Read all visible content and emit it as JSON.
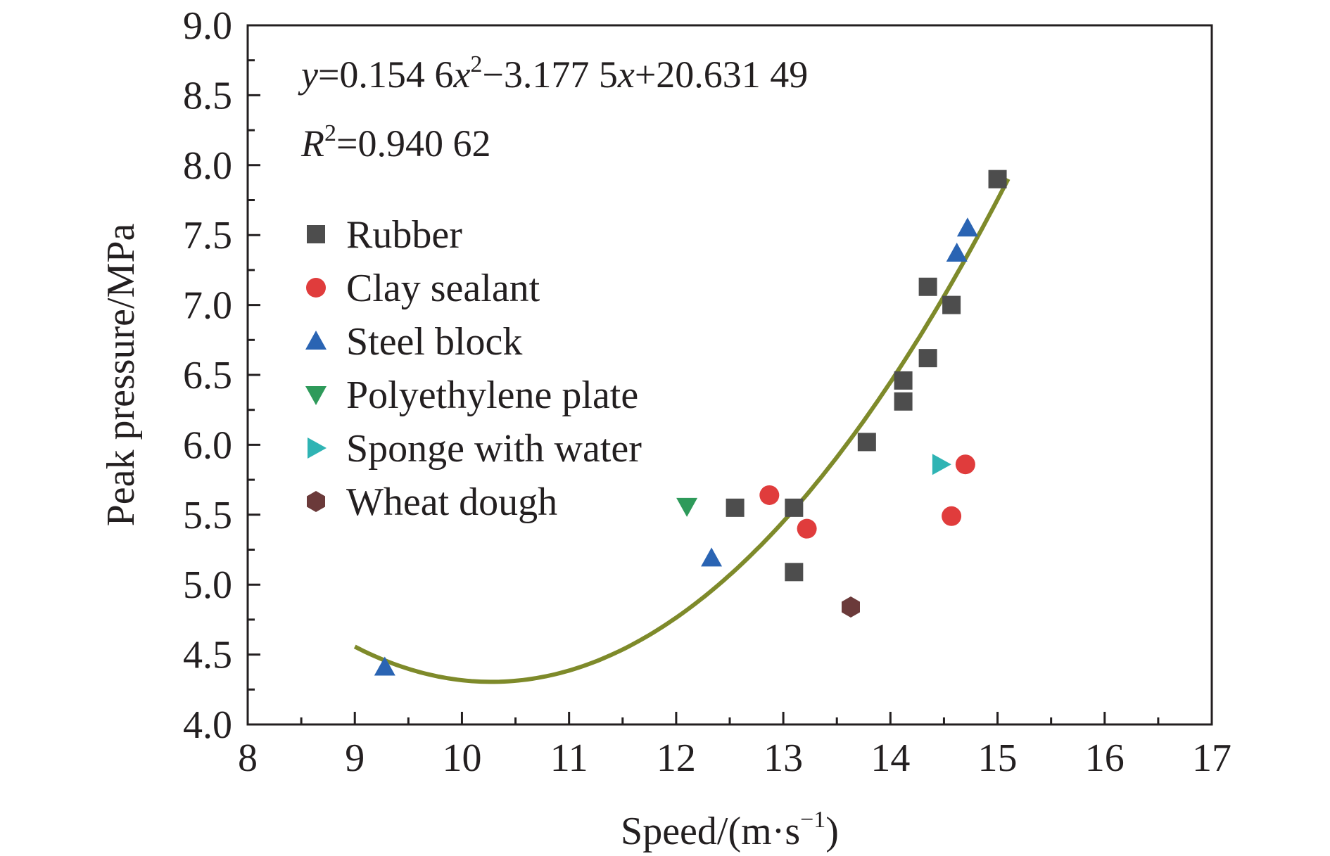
{
  "chart_data": {
    "type": "scatter",
    "xlabel": "Speed/(m·s",
    "xlabel_sup": "−1",
    "xlabel_end": ")",
    "ylabel": "Peak pressure/MPa",
    "xlim": [
      8,
      17
    ],
    "ylim": [
      4.0,
      9.0
    ],
    "x_ticks": [
      "8",
      "9",
      "10",
      "11",
      "12",
      "13",
      "14",
      "15",
      "16",
      "17"
    ],
    "y_ticks": [
      "4.0",
      "4.5",
      "5.0",
      "5.5",
      "6.0",
      "6.5",
      "7.0",
      "7.5",
      "8.0",
      "8.5",
      "9.0"
    ],
    "grid": false,
    "legend_position": "upper-left",
    "annotation": {
      "eq_y": "y",
      "eq_a": "=0.154 6",
      "eq_x1": "x",
      "eq_sup": "2",
      "eq_b": "−3.177 5",
      "eq_x2": "x",
      "eq_c": "+20.631 49",
      "r_R": "R",
      "r_sup": "2",
      "r_val": "=0.940 62"
    },
    "fit": {
      "a": 0.1546,
      "b": -3.1775,
      "c": 20.63149,
      "x_range": [
        9.0,
        15.1
      ],
      "color": "#7e8a2a"
    },
    "series": [
      {
        "name": "Rubber",
        "marker": "square",
        "color": "#4d4d4d",
        "points": [
          [
            12.55,
            5.55
          ],
          [
            13.1,
            5.55
          ],
          [
            13.1,
            5.09
          ],
          [
            13.78,
            6.02
          ],
          [
            14.12,
            6.46
          ],
          [
            14.12,
            6.31
          ],
          [
            14.35,
            7.13
          ],
          [
            14.35,
            6.62
          ],
          [
            14.57,
            7.0
          ],
          [
            15.0,
            7.9
          ]
        ]
      },
      {
        "name": "Clay sealant",
        "marker": "circle",
        "color": "#e03c3c",
        "points": [
          [
            12.87,
            5.64
          ],
          [
            13.22,
            5.4
          ],
          [
            14.57,
            5.49
          ],
          [
            14.7,
            5.86
          ]
        ]
      },
      {
        "name": "Steel block",
        "marker": "triangle-up",
        "color": "#2a64b3",
        "points": [
          [
            9.28,
            4.41
          ],
          [
            12.33,
            5.19
          ],
          [
            14.62,
            7.37
          ],
          [
            14.72,
            7.55
          ]
        ]
      },
      {
        "name": "Polyethylene plate",
        "marker": "triangle-down",
        "color": "#2e9a5a",
        "points": [
          [
            12.1,
            5.56
          ]
        ]
      },
      {
        "name": "Sponge with water",
        "marker": "triangle-right",
        "color": "#2fb4b4",
        "points": [
          [
            14.47,
            5.86
          ]
        ]
      },
      {
        "name": "Wheat dough",
        "marker": "hexagon",
        "color": "#6b3a3a",
        "points": [
          [
            13.63,
            4.84
          ]
        ]
      }
    ]
  }
}
